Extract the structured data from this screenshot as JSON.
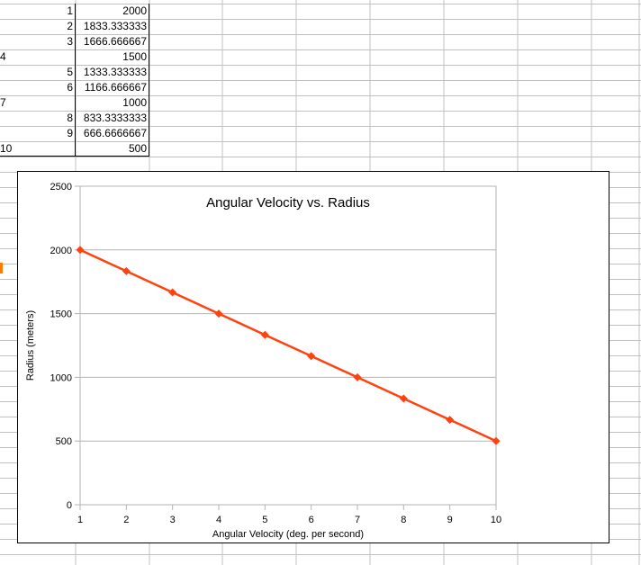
{
  "sheet": {
    "rows": [
      {
        "a": "1",
        "b": "2000"
      },
      {
        "a": "2",
        "b": "1833.333333"
      },
      {
        "a": "3",
        "b": "1666.666667"
      },
      {
        "a": "4",
        "b": "1500"
      },
      {
        "a": "5",
        "b": "1333.333333"
      },
      {
        "a": "6",
        "b": "1166.666667"
      },
      {
        "a": "7",
        "b": "1000"
      },
      {
        "a": "8",
        "b": "833.3333333"
      },
      {
        "a": "9",
        "b": "666.6666667"
      },
      {
        "a": "10",
        "b": "500"
      }
    ]
  },
  "chart_data": {
    "type": "line",
    "title": "Angular Velocity vs. Radius",
    "xlabel": "Angular Velocity (deg. per second)",
    "ylabel": "Radius (meters)",
    "x": [
      1,
      2,
      3,
      4,
      5,
      6,
      7,
      8,
      9,
      10
    ],
    "series": [
      {
        "values": [
          2000,
          1833.333333,
          1666.666667,
          1500,
          1333.333333,
          1166.666667,
          1000,
          833.3333333,
          666.6666667,
          500
        ]
      }
    ],
    "xlim": [
      1,
      10
    ],
    "ylim": [
      0,
      2500
    ],
    "xticks": [
      "1",
      "2",
      "3",
      "4",
      "5",
      "6",
      "7",
      "8",
      "9",
      "10"
    ],
    "yticks": [
      "0",
      "500",
      "1000",
      "1500",
      "2000",
      "2500"
    ],
    "grid": "horizontal",
    "legend": "none",
    "series_color": "#ff420e",
    "marker": "diamond"
  },
  "colors": {
    "gridline": "#b3b3b3",
    "sheet_gridline": "#c0c0c0",
    "selection": "#ff7a00"
  }
}
